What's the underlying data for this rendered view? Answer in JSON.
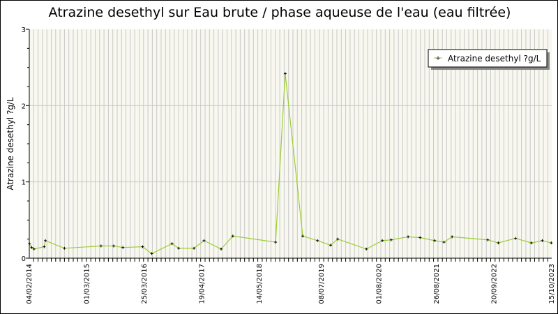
{
  "chart_data": {
    "type": "line",
    "title": "Atrazine desethyl sur Eau brute / phase aqueuse de l'eau (eau filtrée)",
    "ylabel": "Atrazine desethyl ?g/L",
    "xlabel": "",
    "ylim": [
      0,
      3
    ],
    "yticks": [
      "0",
      "1",
      "2",
      "3"
    ],
    "xlim": [
      "2014-02-04",
      "2023-10-15"
    ],
    "xtick_labels": [
      "04/02/2014",
      "01/03/2015",
      "25/03/2016",
      "19/04/2017",
      "14/05/2018",
      "08/07/2019",
      "01/08/2020",
      "26/08/2021",
      "20/09/2022",
      "15/10/2023"
    ],
    "xtick_dates": [
      "2014-02-04",
      "2015-03-01",
      "2016-03-25",
      "2017-04-19",
      "2018-05-14",
      "2019-07-08",
      "2020-08-01",
      "2021-08-26",
      "2022-09-20",
      "2023-10-15"
    ],
    "grid": true,
    "legend_placement": "top-right",
    "colors": {
      "line": "#9acd32",
      "marker": "#000000",
      "plot_bg": "#f8f8f0",
      "grid": "#c8c8c8"
    },
    "series": [
      {
        "name": "Atrazine desethyl ?g/L",
        "x": [
          "2014-02-05",
          "2014-02-20",
          "2014-03-08",
          "2014-05-16",
          "2014-05-24",
          "2014-09-30",
          "2015-06-05",
          "2015-08-30",
          "2015-10-31",
          "2016-03-13",
          "2016-05-14",
          "2016-09-28",
          "2016-11-12",
          "2017-02-24",
          "2017-05-03",
          "2017-08-27",
          "2017-11-14",
          "2018-08-31",
          "2018-11-04",
          "2019-03-03",
          "2019-06-11",
          "2019-09-08",
          "2019-10-26",
          "2020-05-07",
          "2020-08-23",
          "2020-10-22",
          "2021-02-14",
          "2021-05-06",
          "2021-08-13",
          "2021-10-15",
          "2021-12-09",
          "2022-08-08",
          "2022-10-18",
          "2023-02-12",
          "2023-05-30",
          "2023-08-12",
          "2023-10-12"
        ],
        "y": [
          0.19,
          0.14,
          0.12,
          0.15,
          0.23,
          0.13,
          0.16,
          0.16,
          0.14,
          0.15,
          0.06,
          0.19,
          0.13,
          0.13,
          0.23,
          0.12,
          0.29,
          0.21,
          2.42,
          0.29,
          0.23,
          0.17,
          0.25,
          0.12,
          0.23,
          0.24,
          0.28,
          0.27,
          0.23,
          0.21,
          0.28,
          0.24,
          0.2,
          0.26,
          0.2,
          0.23,
          0.2
        ]
      }
    ]
  }
}
